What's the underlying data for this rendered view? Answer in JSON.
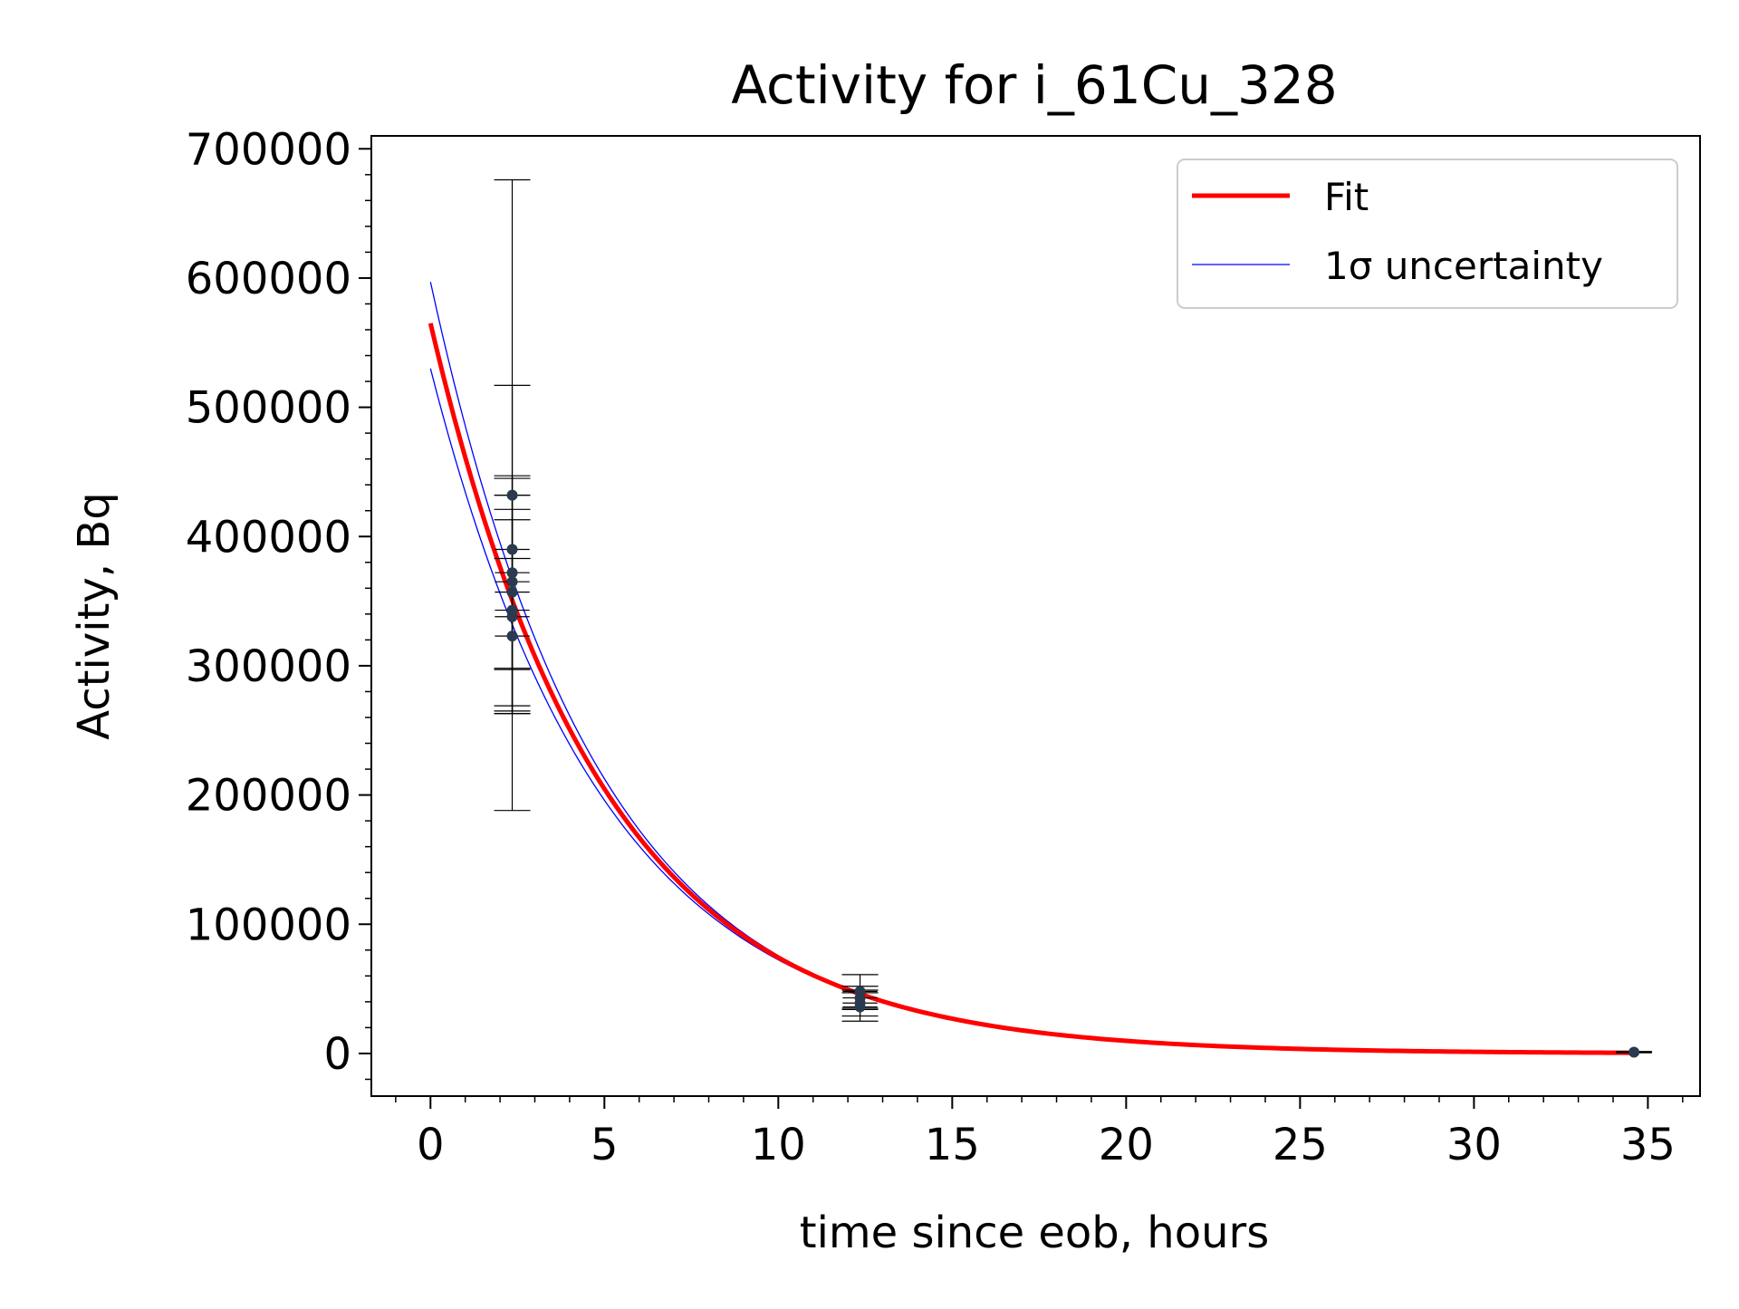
{
  "chart_data": {
    "type": "scatter",
    "title": "Activity for i_61Cu_328",
    "xlabel": "time since eob, hours",
    "ylabel": "Activity, Bq",
    "xlim": [
      -1.7,
      36.5
    ],
    "ylim": [
      -33000,
      710000
    ],
    "xticks": [
      0,
      5,
      10,
      15,
      20,
      25,
      30,
      35
    ],
    "yticks": [
      0,
      100000,
      200000,
      300000,
      400000,
      500000,
      600000,
      700000
    ],
    "grid": false,
    "legend_position": "top-right",
    "legend": [
      {
        "label": "Fit",
        "color": "#ff0000",
        "style": "thick-line"
      },
      {
        "label": "1σ uncertainty",
        "color": "#0000ff",
        "style": "thin-line"
      }
    ],
    "fit": {
      "name": "Fit",
      "color": "#ff0000",
      "A0": 565000,
      "lambda": 0.203,
      "x_start": 0,
      "x_end": 34.5
    },
    "uncertainty_band": {
      "name": "1σ uncertainty",
      "color": "#0000ff",
      "upper": {
        "A0": 597000,
        "lambda": 0.2065
      },
      "lower": {
        "A0": 530000,
        "lambda": 0.199
      }
    },
    "points": [
      {
        "x": 2.35,
        "y": 432000,
        "yerr": 244000,
        "xerr": 0.5
      },
      {
        "x": 2.35,
        "y": 390000,
        "yerr": 127000,
        "xerr": 0.5
      },
      {
        "x": 2.35,
        "y": 372000,
        "yerr": 75000,
        "xerr": 0.5
      },
      {
        "x": 2.35,
        "y": 365000,
        "yerr": 67000,
        "xerr": 0.5
      },
      {
        "x": 2.35,
        "y": 357000,
        "yerr": 88000,
        "xerr": 0.5
      },
      {
        "x": 2.35,
        "y": 343000,
        "yerr": 78000,
        "xerr": 0.5
      },
      {
        "x": 2.35,
        "y": 338000,
        "yerr": 75000,
        "xerr": 0.5
      },
      {
        "x": 2.35,
        "y": 323000,
        "yerr": 60000,
        "xerr": 0.5
      },
      {
        "x": 12.35,
        "y": 48000,
        "yerr": 13000,
        "xerr": 0.5
      },
      {
        "x": 12.35,
        "y": 43000,
        "yerr": 9000,
        "xerr": 0.5
      },
      {
        "x": 12.35,
        "y": 39000,
        "yerr": 10000,
        "xerr": 0.5
      },
      {
        "x": 12.35,
        "y": 36000,
        "yerr": 11000,
        "xerr": 0.5
      },
      {
        "x": 34.6,
        "y": 1000,
        "yerr": 500,
        "xerr": 0.5
      }
    ],
    "colors": {
      "points": "#2a3a4f",
      "errorbars": "#000000",
      "fit": "#ff0000",
      "band": "#0000ff"
    }
  }
}
